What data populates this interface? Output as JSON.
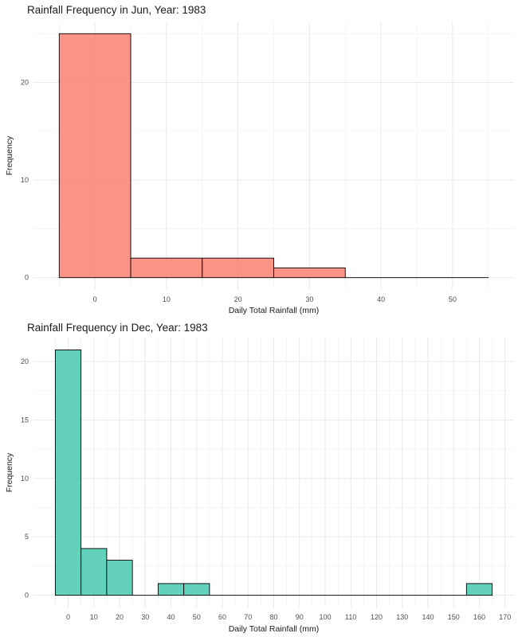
{
  "chart_data": [
    {
      "type": "bar",
      "title": "Rainfall Frequency in Jun, Year: 1983",
      "xlabel": "Daily Total Rainfall (mm)",
      "ylabel": "Frequency",
      "fill": "#FA8072",
      "bins": [
        {
          "start": -5,
          "end": 5,
          "count": 25
        },
        {
          "start": 5,
          "end": 15,
          "count": 2
        },
        {
          "start": 15,
          "end": 25,
          "count": 2
        },
        {
          "start": 25,
          "end": 35,
          "count": 1
        },
        {
          "start": 35,
          "end": 45,
          "count": 0
        },
        {
          "start": 45,
          "end": 55,
          "count": 0
        }
      ],
      "xlim": [
        -8.6,
        58.6
      ],
      "ylim": [
        -1.25,
        26.25
      ],
      "x_ticks": [
        0,
        10,
        20,
        30,
        40,
        50
      ],
      "y_ticks": [
        0,
        10,
        20
      ],
      "grid": true
    },
    {
      "type": "bar",
      "title": "Rainfall Frequency in Dec, Year: 1983",
      "xlabel": "Daily Total Rainfall (mm)",
      "ylabel": "Frequency",
      "fill": "#48C9B0",
      "bins": [
        {
          "start": -5,
          "end": 5,
          "count": 21
        },
        {
          "start": 5,
          "end": 15,
          "count": 4
        },
        {
          "start": 15,
          "end": 25,
          "count": 3
        },
        {
          "start": 25,
          "end": 35,
          "count": 0
        },
        {
          "start": 35,
          "end": 45,
          "count": 1
        },
        {
          "start": 45,
          "end": 55,
          "count": 1
        },
        {
          "start": 55,
          "end": 65,
          "count": 0
        },
        {
          "start": 65,
          "end": 75,
          "count": 0
        },
        {
          "start": 75,
          "end": 85,
          "count": 0
        },
        {
          "start": 85,
          "end": 95,
          "count": 0
        },
        {
          "start": 95,
          "end": 105,
          "count": 0
        },
        {
          "start": 105,
          "end": 115,
          "count": 0
        },
        {
          "start": 115,
          "end": 125,
          "count": 0
        },
        {
          "start": 125,
          "end": 135,
          "count": 0
        },
        {
          "start": 135,
          "end": 145,
          "count": 0
        },
        {
          "start": 145,
          "end": 155,
          "count": 0
        },
        {
          "start": 155,
          "end": 165,
          "count": 1
        }
      ],
      "xlim": [
        -13.5,
        173.5
      ],
      "ylim": [
        -1.05,
        22.05
      ],
      "x_ticks": [
        0,
        10,
        20,
        30,
        40,
        50,
        60,
        70,
        80,
        90,
        100,
        110,
        120,
        130,
        140,
        150,
        160,
        170
      ],
      "y_ticks": [
        0,
        5,
        10,
        15,
        20
      ],
      "grid": true
    }
  ]
}
